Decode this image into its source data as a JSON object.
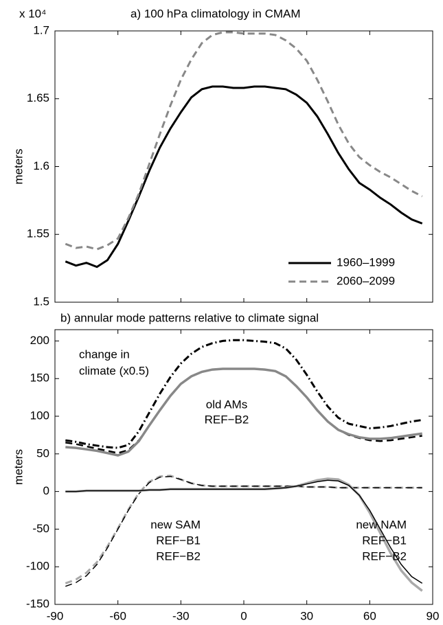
{
  "chart_data": [
    {
      "type": "line",
      "title": "a) 100 hPa climatology in CMAM",
      "axis_multiplier": "x 10⁴",
      "ylabel": "meters",
      "x": [
        -85,
        -80,
        -75,
        -70,
        -65,
        -60,
        -55,
        -50,
        -45,
        -40,
        -35,
        -30,
        -25,
        -20,
        -15,
        -10,
        -5,
        0,
        5,
        10,
        15,
        20,
        25,
        30,
        35,
        40,
        45,
        50,
        55,
        60,
        65,
        70,
        75,
        80,
        85
      ],
      "xlim": [
        -90,
        90
      ],
      "xticks": [
        -90,
        -60,
        -30,
        0,
        30,
        60,
        90
      ],
      "ylim": [
        1.5,
        1.7
      ],
      "yticks": [
        1.5,
        1.55,
        1.6,
        1.65,
        1.7
      ],
      "legend": "lower right",
      "series": [
        {
          "name": "1960–1999",
          "color": "#000000",
          "style": "solid",
          "linewidth": 3,
          "values": [
            1.53,
            1.527,
            1.529,
            1.526,
            1.531,
            1.543,
            1.56,
            1.578,
            1.597,
            1.614,
            1.628,
            1.64,
            1.651,
            1.657,
            1.659,
            1.659,
            1.658,
            1.658,
            1.659,
            1.659,
            1.658,
            1.657,
            1.653,
            1.647,
            1.637,
            1.624,
            1.61,
            1.598,
            1.588,
            1.583,
            1.577,
            1.572,
            1.566,
            1.561,
            1.558
          ]
        },
        {
          "name": "2060–2099",
          "color": "#888888",
          "style": "dashed",
          "linewidth": 3,
          "values": [
            1.543,
            1.54,
            1.541,
            1.539,
            1.542,
            1.547,
            1.562,
            1.58,
            1.602,
            1.624,
            1.645,
            1.664,
            1.679,
            1.691,
            1.697,
            1.699,
            1.699,
            1.698,
            1.698,
            1.698,
            1.697,
            1.693,
            1.687,
            1.678,
            1.664,
            1.648,
            1.631,
            1.617,
            1.607,
            1.601,
            1.596,
            1.592,
            1.587,
            1.582,
            1.578
          ]
        }
      ]
    },
    {
      "type": "line",
      "title": "b) annular mode patterns relative to climate signal",
      "ylabel": "meters",
      "x": [
        -85,
        -80,
        -75,
        -70,
        -65,
        -60,
        -55,
        -50,
        -45,
        -40,
        -35,
        -30,
        -25,
        -20,
        -15,
        -10,
        -5,
        0,
        5,
        10,
        15,
        20,
        25,
        30,
        35,
        40,
        45,
        50,
        55,
        60,
        65,
        70,
        75,
        80,
        85
      ],
      "xlim": [
        -90,
        90
      ],
      "xticks": [
        -90,
        -60,
        -30,
        0,
        30,
        60,
        90
      ],
      "ylim": [
        -150,
        215
      ],
      "yticks": [
        -150,
        -100,
        -50,
        0,
        50,
        100,
        150,
        200
      ],
      "annotations": [
        {
          "text": "change in",
          "color": "#000000"
        },
        {
          "text": "climate (x0.5)",
          "color": "#000000"
        },
        {
          "text": "old AMs",
          "color": "#888888"
        },
        {
          "text": "REF−B2",
          "color": "#888888"
        },
        {
          "text": "new SAM",
          "color": "#000000"
        },
        {
          "text": "REF−B1",
          "color": "#000000"
        },
        {
          "text": "REF−B2",
          "color": "#aaaaaa"
        },
        {
          "text": "new NAM",
          "color": "#000000"
        },
        {
          "text": "REF−B1",
          "color": "#000000"
        },
        {
          "text": "REF−B2",
          "color": "#aaaaaa"
        }
      ],
      "series": [
        {
          "color": "#000000",
          "style": "dashdot",
          "linewidth": 3,
          "values": [
            68,
            66,
            63,
            61,
            59,
            58,
            62,
            80,
            105,
            130,
            152,
            170,
            183,
            192,
            197,
            200,
            201,
            201,
            200,
            199,
            197,
            190,
            175,
            155,
            133,
            113,
            98,
            90,
            87,
            84,
            85,
            87,
            90,
            93,
            95
          ]
        },
        {
          "color": "#000000",
          "style": "dashed",
          "linewidth": 2.5,
          "values": [
            65,
            63,
            60,
            57,
            54,
            51,
            55,
            68,
            88,
            108,
            127,
            143,
            153,
            159,
            162,
            163,
            163,
            163,
            163,
            162,
            160,
            153,
            140,
            125,
            108,
            93,
            82,
            75,
            71,
            68,
            67,
            68,
            70,
            72,
            74
          ]
        },
        {
          "color": "#888888",
          "style": "solid",
          "linewidth": 3.5,
          "values": [
            59,
            58,
            56,
            54,
            51,
            48,
            53,
            67,
            88,
            108,
            127,
            143,
            153,
            159,
            162,
            163,
            163,
            163,
            163,
            162,
            160,
            153,
            140,
            125,
            108,
            93,
            82,
            76,
            72,
            70,
            70,
            71,
            73,
            75,
            77
          ]
        },
        {
          "color": "#aaaaaa",
          "style": "dashed",
          "linewidth": 3,
          "values": [
            -122,
            -117,
            -108,
            -94,
            -73,
            -49,
            -24,
            -2,
            13,
            20,
            21,
            16,
            11,
            8,
            7,
            7,
            7,
            7,
            7,
            7,
            7,
            7,
            7,
            6,
            6,
            6,
            5,
            5,
            5,
            5,
            5,
            5,
            5,
            5,
            5
          ]
        },
        {
          "color": "#000000",
          "style": "dashed",
          "linewidth": 1.5,
          "values": [
            -126,
            -121,
            -112,
            -97,
            -75,
            -50,
            -25,
            -3,
            12,
            19,
            20,
            16,
            11,
            8,
            7,
            7,
            7,
            7,
            7,
            7,
            7,
            7,
            7,
            6,
            6,
            6,
            5,
            5,
            5,
            5,
            5,
            5,
            5,
            5,
            5
          ]
        },
        {
          "color": "#aaaaaa",
          "style": "solid",
          "linewidth": 3.5,
          "values": [
            0,
            0,
            1,
            1,
            1,
            1,
            1,
            1,
            2,
            2,
            3,
            3,
            3,
            3,
            3,
            3,
            3,
            3,
            3,
            3,
            4,
            5,
            7,
            11,
            15,
            17,
            16,
            9,
            -5,
            -28,
            -55,
            -82,
            -105,
            -121,
            -132
          ]
        },
        {
          "color": "#000000",
          "style": "solid",
          "linewidth": 1.5,
          "values": [
            0,
            0,
            1,
            1,
            1,
            1,
            1,
            1,
            2,
            2,
            3,
            3,
            3,
            3,
            3,
            3,
            3,
            3,
            3,
            3,
            4,
            5,
            7,
            10,
            13,
            15,
            14,
            8,
            -5,
            -25,
            -50,
            -75,
            -97,
            -113,
            -122
          ]
        }
      ]
    }
  ]
}
